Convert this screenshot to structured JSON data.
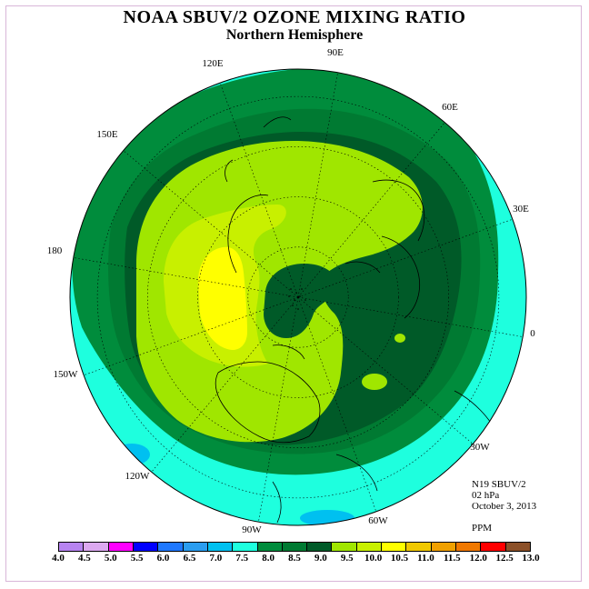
{
  "title": "NOAA SBUV/2 OZONE MIXING RATIO",
  "subtitle": "Northern Hemisphere",
  "longitude_labels": [
    "90E",
    "60E",
    "30E",
    "0",
    "30W",
    "60W",
    "90W",
    "120W",
    "150W",
    "180",
    "150E",
    "120E"
  ],
  "info": {
    "instrument": "N19 SBUV/2",
    "level": "02 hPa",
    "date": "October 3, 2013",
    "units": "PPM"
  },
  "colorbar": {
    "ticks": [
      "4.0",
      "4.5",
      "5.0",
      "5.5",
      "6.0",
      "6.5",
      "7.0",
      "7.5",
      "8.0",
      "8.5",
      "9.0",
      "9.5",
      "10.0",
      "10.5",
      "11.0",
      "11.5",
      "12.0",
      "12.5",
      "13.0"
    ],
    "colors": [
      "#b784f0",
      "#dca9f0",
      "#ff00ff",
      "#0000ff",
      "#1e78ff",
      "#2a9df0",
      "#00c0f0",
      "#1effde",
      "#008c3c",
      "#007a32",
      "#005a28",
      "#a0e600",
      "#c8f000",
      "#ffff00",
      "#f0c800",
      "#f0a000",
      "#f07800",
      "#ff0000",
      "#8c5028"
    ]
  },
  "colors": {
    "c7_5": "#1effde",
    "c8_0": "#008c3c",
    "c8_5": "#007a32",
    "c9_0": "#005a28",
    "c9_5": "#a0e600",
    "c10_0": "#c8f000",
    "c10_5": "#ffff00",
    "c7_0": "#00c0f0"
  }
}
